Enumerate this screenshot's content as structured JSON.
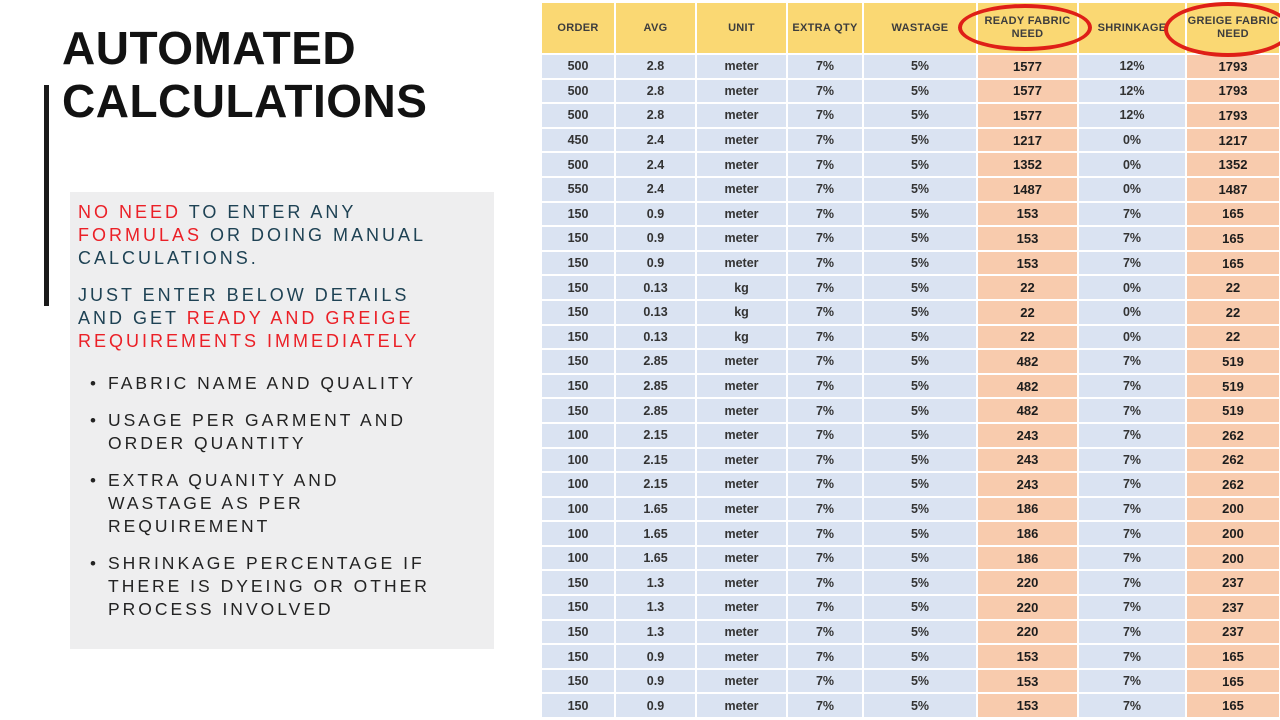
{
  "slide": {
    "title": {
      "line1": "AUTOMATED",
      "line2": "CALCULATIONS"
    },
    "panel": {
      "p1_lines": [
        [
          {
            "t": "NO NEED ",
            "c": "red"
          },
          {
            "t": "TO ENTER ANY",
            "c": "navy"
          }
        ],
        [
          {
            "t": "FORMULAS ",
            "c": "red"
          },
          {
            "t": "OR DOING MANUAL",
            "c": "navy"
          }
        ],
        [
          {
            "t": "CALCULATIONS.",
            "c": "navy"
          }
        ]
      ],
      "p2_lines": [
        [
          {
            "t": "JUST ENTER BELOW DETAILS",
            "c": "navy"
          }
        ],
        [
          {
            "t": "AND GET ",
            "c": "navy"
          },
          {
            "t": "READY AND GREIGE",
            "c": "red"
          }
        ],
        [
          {
            "t": "REQUIREMENTS IMMEDIATELY",
            "c": "red"
          }
        ]
      ],
      "bullets": [
        {
          "lines": [
            "FABRIC NAME AND QUALITY"
          ]
        },
        {
          "lines": [
            "USAGE PER GARMENT AND",
            "ORDER QUANTITY"
          ]
        },
        {
          "lines": [
            "EXTRA QUANITY AND",
            "WASTAGE AS PER",
            "REQUIREMENT"
          ]
        },
        {
          "lines": [
            "SHRINKAGE PERCENTAGE IF",
            "THERE IS DYEING OR OTHER",
            "PROCESS INVOLVED"
          ]
        }
      ]
    },
    "table": {
      "headers": [
        "ORDER",
        "AVG",
        "UNIT",
        "EXTRA QTY",
        "WASTAGE",
        "READY FABRIC NEED",
        "SHRINKAGE",
        "GREIGE FABRIC NEED"
      ],
      "circled_header_indexes": [
        5,
        7
      ],
      "highlight_column_indexes": [
        5,
        7
      ],
      "rows": [
        [
          "500",
          "2.8",
          "meter",
          "7%",
          "5%",
          "1577",
          "12%",
          "1793"
        ],
        [
          "500",
          "2.8",
          "meter",
          "7%",
          "5%",
          "1577",
          "12%",
          "1793"
        ],
        [
          "500",
          "2.8",
          "meter",
          "7%",
          "5%",
          "1577",
          "12%",
          "1793"
        ],
        [
          "450",
          "2.4",
          "meter",
          "7%",
          "5%",
          "1217",
          "0%",
          "1217"
        ],
        [
          "500",
          "2.4",
          "meter",
          "7%",
          "5%",
          "1352",
          "0%",
          "1352"
        ],
        [
          "550",
          "2.4",
          "meter",
          "7%",
          "5%",
          "1487",
          "0%",
          "1487"
        ],
        [
          "150",
          "0.9",
          "meter",
          "7%",
          "5%",
          "153",
          "7%",
          "165"
        ],
        [
          "150",
          "0.9",
          "meter",
          "7%",
          "5%",
          "153",
          "7%",
          "165"
        ],
        [
          "150",
          "0.9",
          "meter",
          "7%",
          "5%",
          "153",
          "7%",
          "165"
        ],
        [
          "150",
          "0.13",
          "kg",
          "7%",
          "5%",
          "22",
          "0%",
          "22"
        ],
        [
          "150",
          "0.13",
          "kg",
          "7%",
          "5%",
          "22",
          "0%",
          "22"
        ],
        [
          "150",
          "0.13",
          "kg",
          "7%",
          "5%",
          "22",
          "0%",
          "22"
        ],
        [
          "150",
          "2.85",
          "meter",
          "7%",
          "5%",
          "482",
          "7%",
          "519"
        ],
        [
          "150",
          "2.85",
          "meter",
          "7%",
          "5%",
          "482",
          "7%",
          "519"
        ],
        [
          "150",
          "2.85",
          "meter",
          "7%",
          "5%",
          "482",
          "7%",
          "519"
        ],
        [
          "100",
          "2.15",
          "meter",
          "7%",
          "5%",
          "243",
          "7%",
          "262"
        ],
        [
          "100",
          "2.15",
          "meter",
          "7%",
          "5%",
          "243",
          "7%",
          "262"
        ],
        [
          "100",
          "2.15",
          "meter",
          "7%",
          "5%",
          "243",
          "7%",
          "262"
        ],
        [
          "100",
          "1.65",
          "meter",
          "7%",
          "5%",
          "186",
          "7%",
          "200"
        ],
        [
          "100",
          "1.65",
          "meter",
          "7%",
          "5%",
          "186",
          "7%",
          "200"
        ],
        [
          "100",
          "1.65",
          "meter",
          "7%",
          "5%",
          "186",
          "7%",
          "200"
        ],
        [
          "150",
          "1.3",
          "meter",
          "7%",
          "5%",
          "220",
          "7%",
          "237"
        ],
        [
          "150",
          "1.3",
          "meter",
          "7%",
          "5%",
          "220",
          "7%",
          "237"
        ],
        [
          "150",
          "1.3",
          "meter",
          "7%",
          "5%",
          "220",
          "7%",
          "237"
        ],
        [
          "150",
          "0.9",
          "meter",
          "7%",
          "5%",
          "153",
          "7%",
          "165"
        ],
        [
          "150",
          "0.9",
          "meter",
          "7%",
          "5%",
          "153",
          "7%",
          "165"
        ],
        [
          "150",
          "0.9",
          "meter",
          "7%",
          "5%",
          "153",
          "7%",
          "165"
        ]
      ]
    },
    "colors": {
      "header_yellow": "#FAD873",
      "row_blue": "#DAE3F2",
      "highlight_peach": "#F8CBAD",
      "annotation_red": "#DF1F17",
      "text_navy": "#1E4254",
      "text_red": "#EB2027"
    }
  }
}
